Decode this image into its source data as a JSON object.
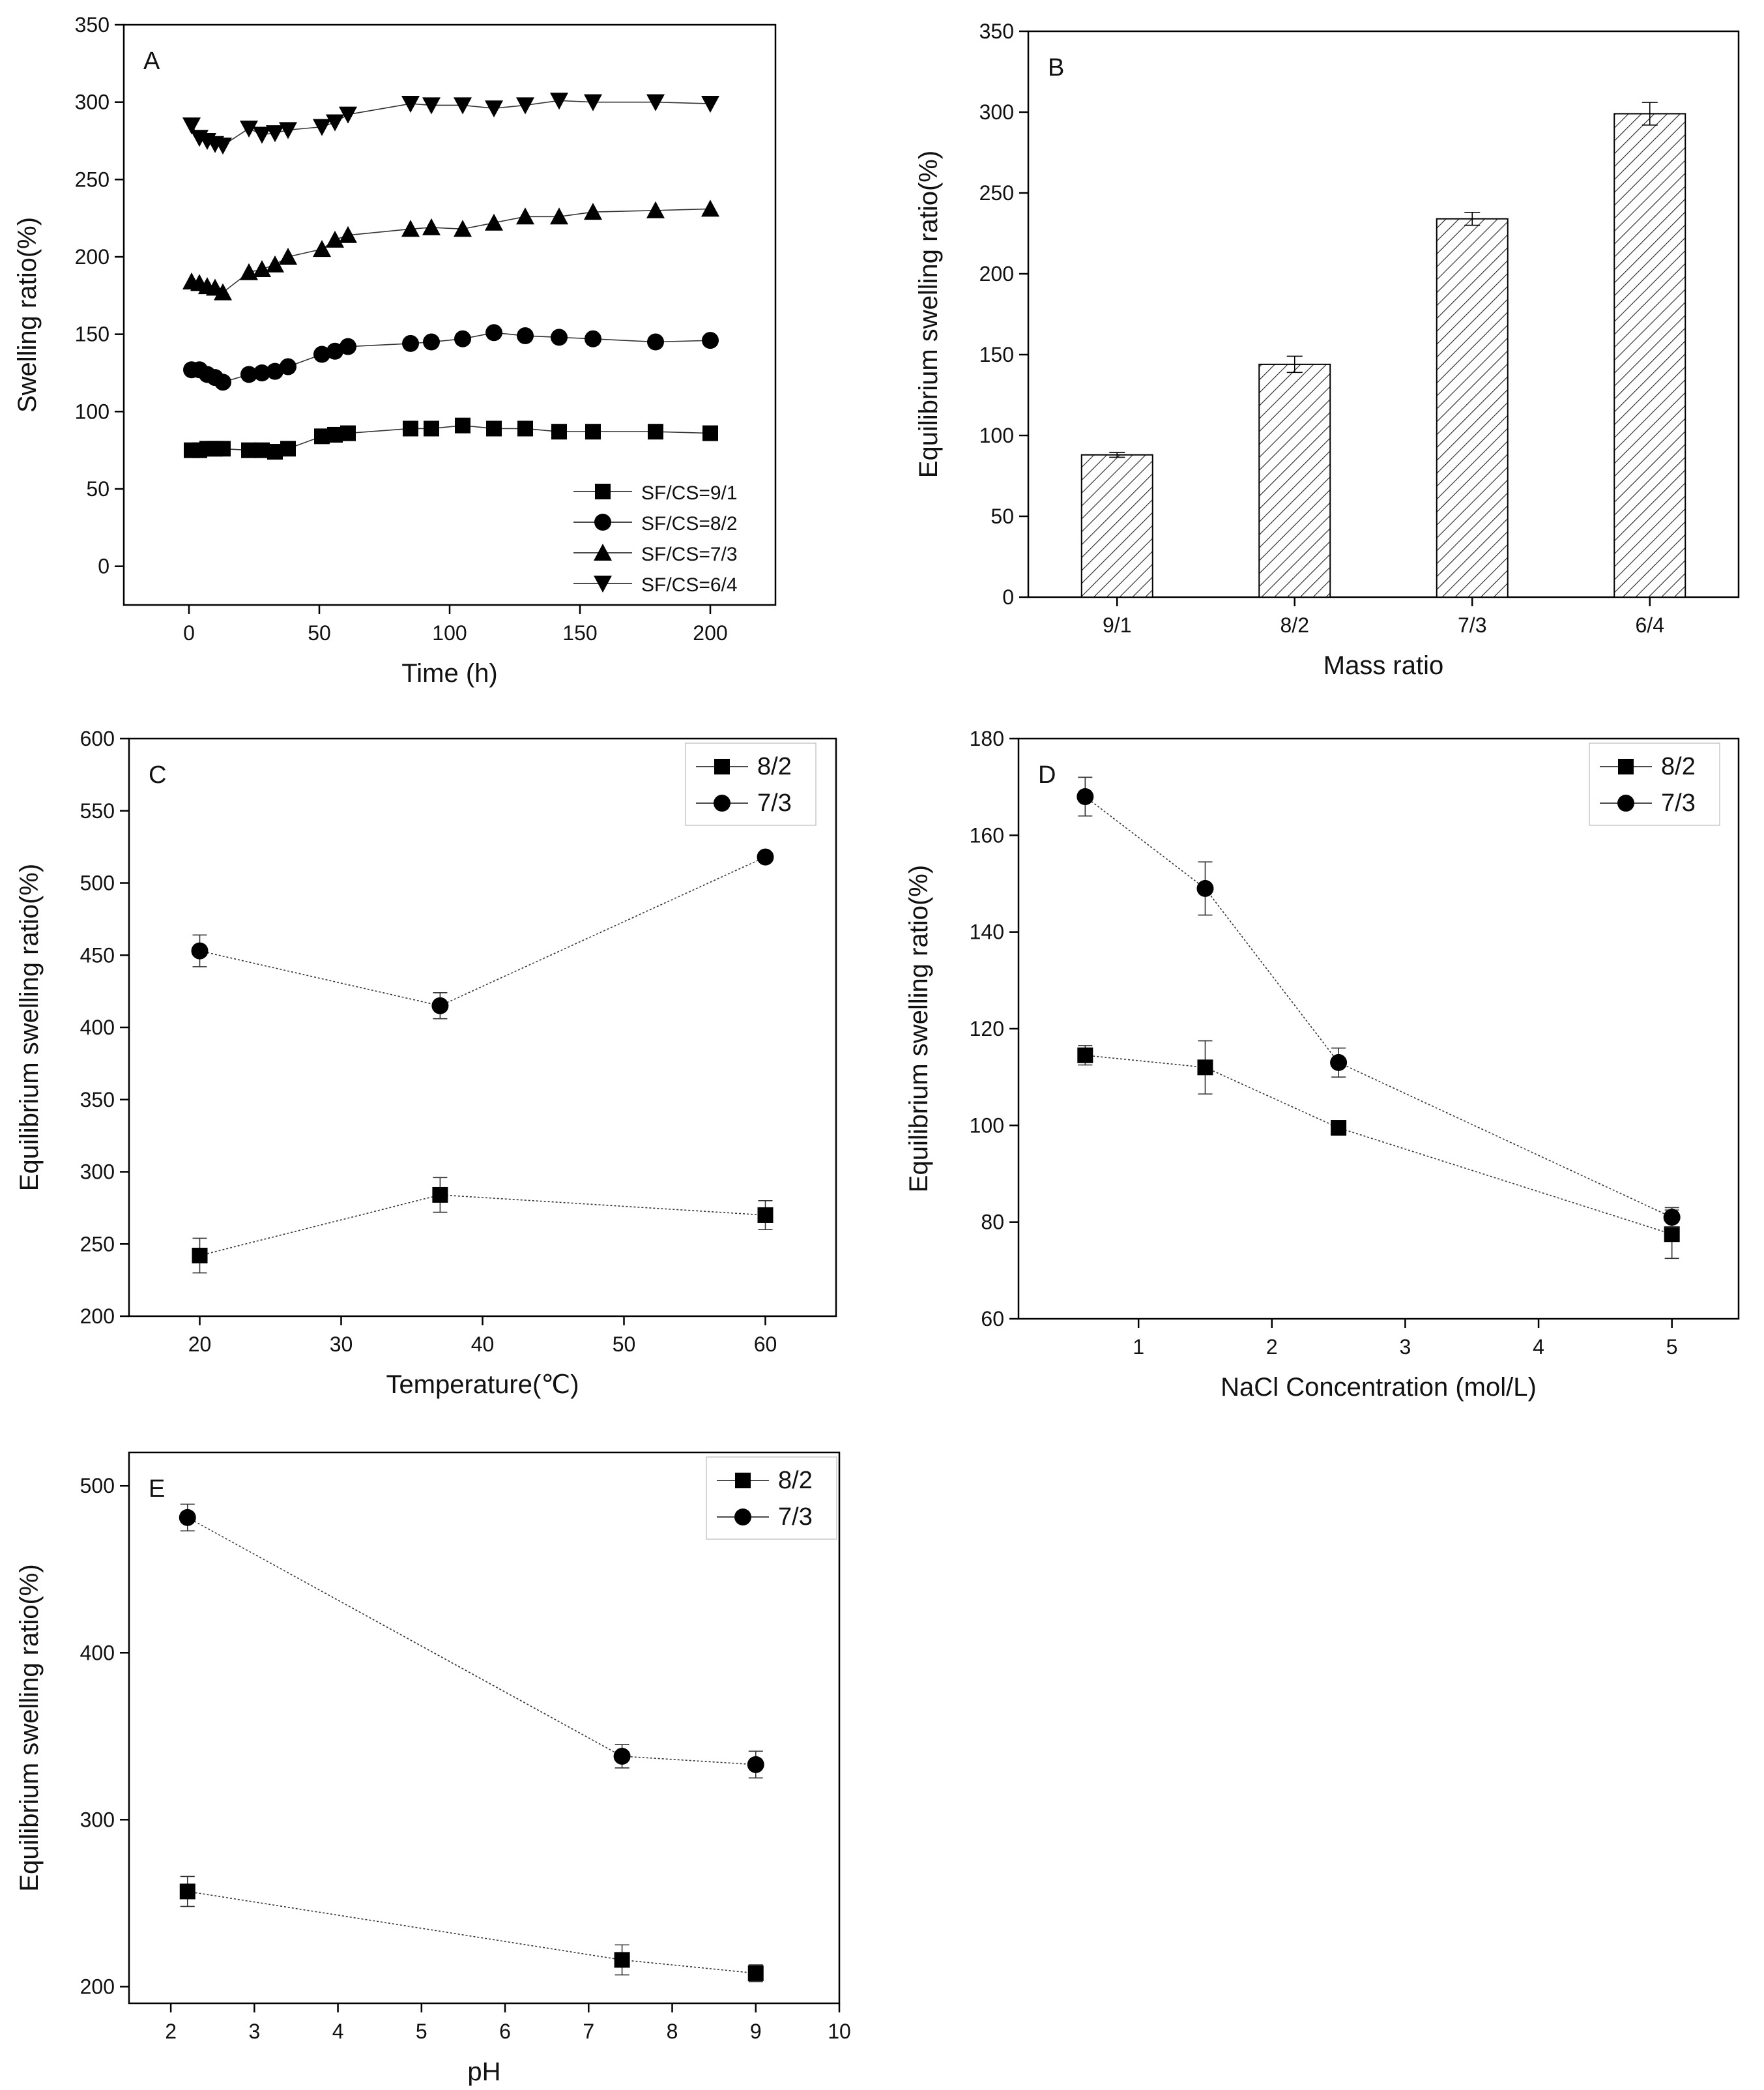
{
  "chart_data": [
    {
      "panel": "A",
      "type": "line",
      "label": "A",
      "xlabel": "Time (h)",
      "ylabel": "Swelling ratio(%)",
      "xlim": [
        -25,
        225
      ],
      "ylim": [
        -25,
        350
      ],
      "xticks": [
        0,
        50,
        100,
        150,
        200
      ],
      "yticks": [
        0,
        50,
        100,
        150,
        200,
        250,
        300,
        350
      ],
      "legend_position": "bottom-right",
      "series": [
        {
          "name": "SF/CS=9/1",
          "marker": "square",
          "x": [
            1,
            4,
            7,
            10,
            13,
            23,
            28,
            33,
            38,
            51,
            56,
            61,
            85,
            93,
            105,
            117,
            129,
            142,
            155,
            179,
            200
          ],
          "y": [
            75,
            75,
            76,
            76,
            76,
            75,
            75,
            74,
            76,
            84,
            85,
            86,
            89,
            89,
            91,
            89,
            89,
            87,
            87,
            87,
            86
          ]
        },
        {
          "name": "SF/CS=8/2",
          "marker": "circle",
          "x": [
            1,
            4,
            7,
            10,
            13,
            23,
            28,
            33,
            38,
            51,
            56,
            61,
            85,
            93,
            105,
            117,
            129,
            142,
            155,
            179,
            200
          ],
          "y": [
            127,
            127,
            124,
            122,
            119,
            124,
            125,
            126,
            129,
            137,
            139,
            142,
            144,
            145,
            147,
            151,
            149,
            148,
            147,
            145,
            146
          ]
        },
        {
          "name": "SF/CS=7/3",
          "marker": "triangle-up",
          "x": [
            1,
            4,
            7,
            10,
            13,
            23,
            28,
            33,
            38,
            51,
            56,
            61,
            85,
            93,
            105,
            117,
            129,
            142,
            155,
            179,
            200
          ],
          "y": [
            184,
            183,
            181,
            180,
            177,
            190,
            192,
            195,
            200,
            205,
            211,
            214,
            218,
            219,
            218,
            222,
            226,
            226,
            229,
            230,
            231
          ]
        },
        {
          "name": "SF/CS=6/4",
          "marker": "triangle-down",
          "x": [
            1,
            4,
            7,
            10,
            13,
            23,
            28,
            33,
            38,
            51,
            56,
            61,
            85,
            93,
            105,
            117,
            129,
            142,
            155,
            179,
            200
          ],
          "y": [
            285,
            277,
            275,
            273,
            272,
            283,
            279,
            280,
            282,
            284,
            287,
            292,
            299,
            298,
            298,
            296,
            298,
            301,
            300,
            300,
            299
          ]
        }
      ]
    },
    {
      "panel": "B",
      "type": "bar",
      "label": "B",
      "xlabel": "Mass ratio",
      "ylabel": "Equilibrium swelling ratio(%)",
      "ylim": [
        0,
        350
      ],
      "yticks": [
        0,
        50,
        100,
        150,
        200,
        250,
        300,
        350
      ],
      "categories": [
        "9/1",
        "8/2",
        "7/3",
        "6/4"
      ],
      "values": [
        88,
        144,
        234,
        299
      ],
      "errors": [
        1.5,
        5,
        4,
        7
      ],
      "bar_fill": "hatched"
    },
    {
      "panel": "C",
      "type": "line",
      "label": "C",
      "xlabel": "Temperature(℃)",
      "ylabel": "Equilibrium swelling ratio(%)",
      "xlim": [
        15,
        65
      ],
      "ylim": [
        200,
        600
      ],
      "xticks": [
        20,
        30,
        40,
        50,
        60
      ],
      "yticks": [
        200,
        250,
        300,
        350,
        400,
        450,
        500,
        550,
        600
      ],
      "legend_position": "top-right",
      "series": [
        {
          "name": "8/2",
          "marker": "square",
          "x": [
            20,
            37,
            60
          ],
          "y": [
            242,
            284,
            270
          ],
          "errors": [
            12,
            12,
            10
          ]
        },
        {
          "name": "7/3",
          "marker": "circle",
          "x": [
            20,
            37,
            60
          ],
          "y": [
            453,
            415,
            518
          ],
          "errors": [
            11,
            9,
            3
          ]
        }
      ]
    },
    {
      "panel": "D",
      "type": "line",
      "label": "D",
      "xlabel": "NaCl Concentration (mol/L)",
      "ylabel": "Equilibrium swelling ratio(%)",
      "xlim": [
        0.1,
        5.5
      ],
      "ylim": [
        60,
        180
      ],
      "xticks": [
        1,
        2,
        3,
        4,
        5
      ],
      "yticks": [
        60,
        80,
        100,
        120,
        140,
        160,
        180
      ],
      "legend_position": "top-right",
      "series": [
        {
          "name": "8/2",
          "marker": "square",
          "x": [
            0.6,
            1.5,
            2.5,
            5
          ],
          "y": [
            114.5,
            112,
            99.5,
            77.5
          ],
          "errors": [
            2,
            5.5,
            1,
            5
          ]
        },
        {
          "name": "7/3",
          "marker": "circle",
          "x": [
            0.6,
            1.5,
            2.5,
            5
          ],
          "y": [
            168,
            149,
            113,
            81
          ],
          "errors": [
            4,
            5.5,
            3,
            2
          ]
        }
      ]
    },
    {
      "panel": "E",
      "type": "line",
      "label": "E",
      "xlabel": "pH",
      "ylabel": "Equilibrium swelling ratio(%)",
      "xlim": [
        1.5,
        10
      ],
      "ylim": [
        190,
        520
      ],
      "xticks": [
        2,
        3,
        4,
        5,
        6,
        7,
        8,
        9,
        10
      ],
      "yticks": [
        200,
        300,
        400,
        500
      ],
      "legend_position": "top-right",
      "series": [
        {
          "name": "8/2",
          "marker": "square",
          "x": [
            2.2,
            7.4,
            9
          ],
          "y": [
            257,
            216,
            208
          ],
          "errors": [
            9,
            9,
            5
          ]
        },
        {
          "name": "7/3",
          "marker": "circle",
          "x": [
            2.2,
            7.4,
            9
          ],
          "y": [
            481,
            338,
            333
          ],
          "errors": [
            8,
            7,
            8
          ]
        }
      ]
    }
  ]
}
